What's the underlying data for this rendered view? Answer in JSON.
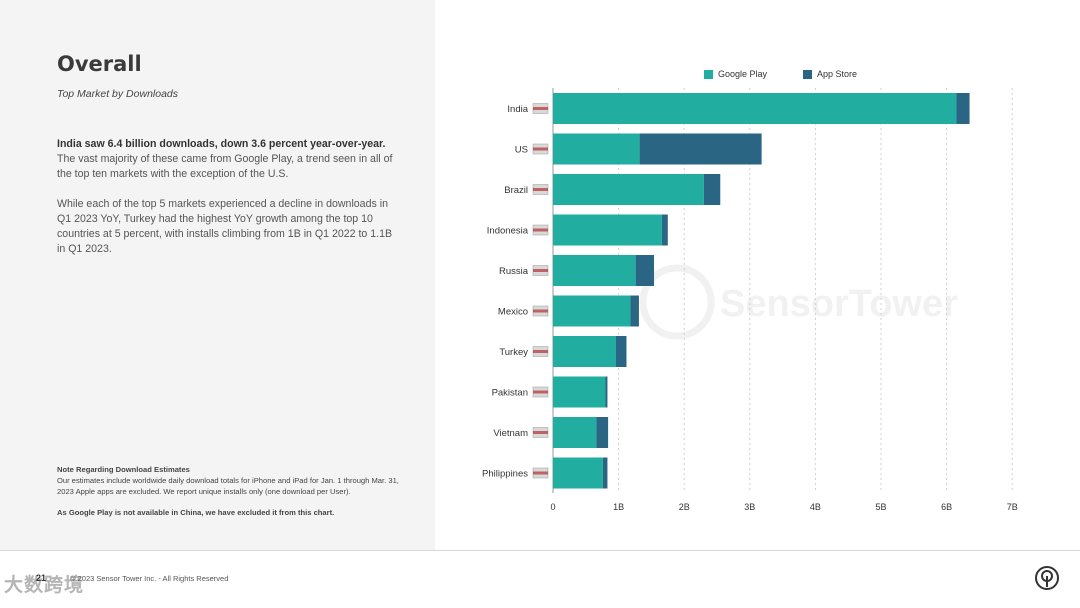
{
  "page": {
    "title": "Overall",
    "subtitle": "Top Market by Downloads",
    "para1_bold": "India saw 6.4 billion downloads, down 3.6 percent year-over-year.",
    "para1_rest": " The vast majority of these came from Google Play, a trend seen in all of the top ten markets with the exception of the U.S.",
    "para2": "While each of the top 5 markets experienced a decline in downloads in Q1 2023 YoY, Turkey had the highest YoY growth among the top 10 countries at 5 percent, with installs climbing from 1B in Q1 2022 to 1.1B in Q1 2023.",
    "note_title": "Note Regarding Download Estimates",
    "note_body": "Our estimates include worldwide daily download totals for iPhone and iPad for Jan. 1 through Mar. 31, 2023 Apple apps are excluded. We report unique installs only (one download per User).",
    "note_china": "As Google Play is not available in China, we have excluded it from this chart.",
    "page_number": "21",
    "copyright": "© 2023 Sensor Tower Inc. - All Rights Reserved",
    "watermark_brand": "SensorTower",
    "watermark_cn": "大数跨境"
  },
  "colors": {
    "google_play": "#22ada1",
    "app_store": "#2b6584",
    "flag_icon": "flag-icon"
  },
  "chart_data": {
    "type": "bar",
    "orientation": "horizontal",
    "stacked": true,
    "categories": [
      "India",
      "US",
      "Brazil",
      "Indonesia",
      "Russia",
      "Mexico",
      "Turkey",
      "Pakistan",
      "Vietnam",
      "Philippines"
    ],
    "series": [
      {
        "name": "Google Play",
        "color": "#22ada1",
        "values": [
          6.15,
          1.32,
          2.3,
          1.66,
          1.26,
          1.18,
          0.96,
          0.8,
          0.66,
          0.76
        ]
      },
      {
        "name": "App Store",
        "color": "#2b6584",
        "values": [
          0.2,
          1.86,
          0.25,
          0.09,
          0.28,
          0.13,
          0.16,
          0.03,
          0.18,
          0.07
        ]
      }
    ],
    "x_ticks": [
      "0",
      "1B",
      "2B",
      "3B",
      "4B",
      "5B",
      "6B",
      "7B"
    ],
    "xlim": [
      0,
      7
    ],
    "grid": true,
    "legend": "top"
  }
}
